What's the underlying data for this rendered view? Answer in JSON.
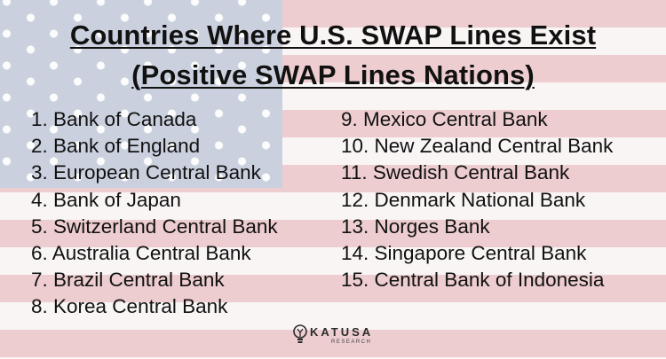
{
  "title": {
    "line1": "Countries Where U.S. SWAP Lines Exist",
    "line2": "(Positive SWAP Lines Nations)"
  },
  "banks_left": [
    "1. Bank of Canada",
    "2. Bank of England",
    "3. European Central Bank",
    "4. Bank of Japan",
    "5. Switzerland Central Bank",
    "6. Australia Central Bank",
    "7. Brazil Central Bank",
    "8. Korea Central Bank"
  ],
  "banks_right": [
    "9. Mexico Central Bank",
    "10. New Zealand Central Bank",
    "11. Swedish Central Bank",
    "12. Denmark National Bank",
    "13. Norges Bank",
    "14. Singapore Central Bank",
    "15. Central Bank of Indonesia"
  ],
  "logo": {
    "name": "KATUSA",
    "subtitle": "RESEARCH",
    "icon": "lightbulb-icon"
  },
  "colors": {
    "stripe_red": "#ecc9cc",
    "stripe_white": "#f9f5f5",
    "canton_blue": "#c6cddc",
    "text": "#111111"
  }
}
